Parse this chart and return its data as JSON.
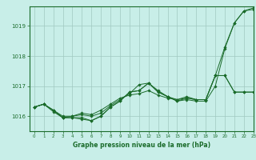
{
  "title": "Graphe pression niveau de la mer (hPa)",
  "bg_color": "#c8eee8",
  "grid_color": "#a0c8c0",
  "line_color": "#1a6b2a",
  "xlim": [
    -0.5,
    23
  ],
  "ylim": [
    1015.5,
    1019.65
  ],
  "yticks": [
    1016,
    1017,
    1018,
    1019
  ],
  "xticks": [
    0,
    1,
    2,
    3,
    4,
    5,
    6,
    7,
    8,
    9,
    10,
    11,
    12,
    13,
    14,
    15,
    16,
    17,
    18,
    19,
    20,
    21,
    22,
    23
  ],
  "series": [
    [
      1016.3,
      1016.4,
      1016.2,
      1015.95,
      1015.95,
      1015.95,
      1015.85,
      1016.0,
      1016.3,
      1016.5,
      1016.8,
      1016.85,
      1017.1,
      1016.8,
      1016.65,
      1016.5,
      1016.6,
      1016.55,
      1016.55,
      1017.35,
      1018.3,
      1019.1,
      1019.5,
      1019.6
    ],
    [
      1016.3,
      1016.4,
      1016.2,
      1016.0,
      1016.0,
      1016.1,
      1016.05,
      1016.2,
      1016.4,
      1016.6,
      1016.7,
      1016.75,
      1016.85,
      1016.7,
      1016.6,
      1016.55,
      1016.65,
      1016.55,
      1016.55,
      1017.35,
      1017.35,
      1016.8,
      1016.8,
      1016.8
    ],
    [
      1016.3,
      1016.4,
      1016.2,
      1015.95,
      1016.0,
      1016.05,
      1016.0,
      1016.1,
      1016.35,
      1016.55,
      1016.75,
      1017.05,
      1017.1,
      1016.85,
      1016.65,
      1016.55,
      1016.6,
      1016.55,
      1016.55,
      1017.35,
      1017.35,
      1016.8,
      1016.8,
      1016.8
    ],
    [
      1016.3,
      1016.4,
      1016.15,
      1015.95,
      1015.95,
      1015.9,
      1015.85,
      1016.0,
      1016.3,
      1016.5,
      1016.8,
      1016.85,
      1017.1,
      1016.8,
      1016.65,
      1016.5,
      1016.55,
      1016.5,
      1016.5,
      1017.0,
      1018.25,
      1019.1,
      1019.5,
      1019.55
    ]
  ]
}
